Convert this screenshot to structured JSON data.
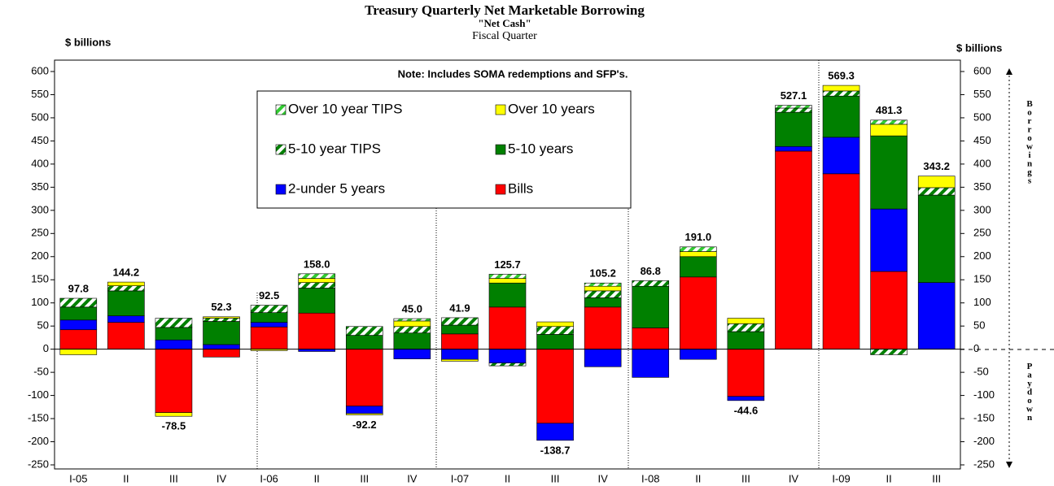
{
  "chart_data": {
    "type": "stacked_bar",
    "title": "Treasury Quarterly Net Marketable Borrowing",
    "subtitle": "\"Net Cash\"",
    "x_label": "Fiscal Quarter",
    "y_label": "$ billions",
    "y2_label": "$ billions",
    "note": "Note: Includes SOMA redemptions and SFP's.",
    "up_label": "Borrowings",
    "down_label": "Paydown",
    "categories": [
      "I-05",
      "II",
      "III",
      "IV",
      "I-06",
      "II",
      "III",
      "IV",
      "I-07",
      "II",
      "III",
      "IV",
      "I-08",
      "II",
      "III",
      "IV",
      "I-09",
      "II",
      "III"
    ],
    "series": [
      {
        "name": "Bills",
        "color": "#ff0000",
        "values": [
          42,
          58,
          -137,
          -17,
          48,
          78,
          -123,
          null,
          33,
          91,
          -160,
          91,
          46,
          156,
          -102,
          428,
          379,
          168,
          null
        ]
      },
      {
        "name": "2-under 5 years",
        "color": "#0000ff",
        "values": [
          21,
          14,
          20,
          10,
          10,
          -5,
          -16,
          -21,
          -22,
          -30,
          -37,
          -38,
          -61,
          -22,
          -9,
          10,
          79,
          135,
          144
        ]
      },
      {
        "name": "5-10 years",
        "color": "#008000",
        "values": [
          28,
          54,
          27,
          50,
          21,
          54,
          30,
          35,
          19,
          52,
          32,
          20,
          90,
          44,
          38,
          74,
          89,
          158,
          189
        ]
      },
      {
        "name": "5-10 year TIPS",
        "color": "#008000",
        "hatch": true,
        "values": [
          19,
          11,
          20,
          7,
          16,
          12,
          19,
          14,
          16,
          -6,
          17,
          15,
          12,
          null,
          17,
          9,
          11,
          -12,
          16
        ]
      },
      {
        "name": "Over 10 years",
        "color": "#ffff00",
        "values": [
          -12,
          8,
          -8,
          3,
          -3,
          9,
          -3,
          12,
          -4,
          10,
          10,
          10,
          null,
          11,
          12,
          null,
          12,
          25,
          25
        ]
      },
      {
        "name": "Over 10 year TIPS",
        "color": "#33cc33",
        "hatch": true,
        "values": [
          null,
          null,
          null,
          null,
          null,
          10,
          null,
          5,
          null,
          9,
          null,
          7,
          null,
          10,
          null,
          6,
          null,
          9,
          null
        ]
      }
    ],
    "legend_order": [
      5,
      4,
      3,
      2,
      1,
      0
    ],
    "totals": {
      "values": [
        97.8,
        144.2,
        -78.5,
        52.3,
        92.5,
        158.0,
        -92.2,
        45.0,
        41.9,
        125.7,
        -138.7,
        105.2,
        86.8,
        191.0,
        -44.6,
        527.1,
        569.3,
        481.3,
        343.2
      ],
      "value_labels": [
        "97.8",
        "144.2",
        "-78.5",
        "52.3",
        "92.5",
        "158.0",
        "-92.2",
        "45.0",
        "41.9",
        "125.7",
        "-138.7",
        "105.2",
        "86.8",
        "191.0",
        "-44.6",
        "527.1",
        "569.3",
        "481.3",
        "343.2"
      ]
    },
    "ylim": [
      -250,
      600
    ],
    "yticks": [
      -250,
      -200,
      -150,
      -100,
      -50,
      0,
      50,
      100,
      150,
      200,
      250,
      300,
      350,
      400,
      450,
      500,
      550,
      600
    ]
  }
}
